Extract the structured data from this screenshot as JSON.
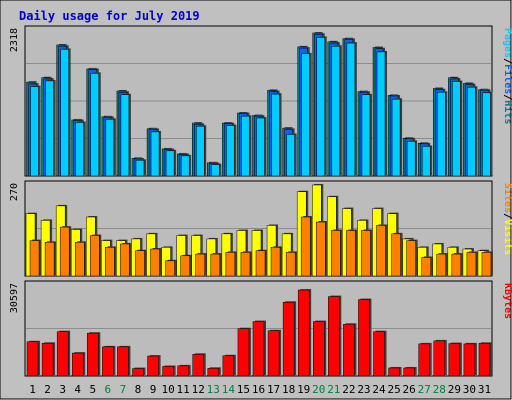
{
  "colors": {
    "background": "#c0c0c0",
    "plot_background": "#bcbcbc",
    "title": "#0000cc",
    "gridline": "#8c8c8c",
    "pages": "#00ccff",
    "files": "#0066ff",
    "hits": "#008080",
    "sites": "#ff8000",
    "visits": "#ffff00",
    "kbytes": "#ff0000",
    "weekday_label": "#000000",
    "weekend_label": "#008040"
  },
  "chart_data": {
    "type": "bar",
    "title": "Daily usage for July 2019",
    "categories": [
      "1",
      "2",
      "3",
      "4",
      "5",
      "6",
      "7",
      "8",
      "9",
      "10",
      "11",
      "12",
      "13",
      "14",
      "15",
      "16",
      "17",
      "18",
      "19",
      "20",
      "21",
      "22",
      "23",
      "24",
      "25",
      "26",
      "27",
      "28",
      "29",
      "30",
      "31"
    ],
    "weekend_days": [
      "6",
      "7",
      "13",
      "14",
      "20",
      "21",
      "27",
      "28"
    ],
    "grid": true,
    "panels": [
      {
        "id": "hits",
        "max_label": "2318",
        "ylim": [
          0,
          2318
        ],
        "legend": [
          "Pages",
          "Files",
          "Hits"
        ],
        "series": [
          {
            "name": "Hits",
            "values": [
              1490,
              1560,
              2080,
              890,
              1700,
              940,
              1350,
              280,
              750,
              430,
              350,
              840,
              210,
              840,
              1000,
              960,
              1360,
              760,
              2050,
              2270,
              2130,
              2180,
              1340,
              2040,
              1280,
              600,
              520,
              1390,
              1560,
              1470,
              1370
            ]
          },
          {
            "name": "Files",
            "values": [
              1460,
              1540,
              2060,
              880,
              1690,
              930,
              1330,
              270,
              740,
              420,
              340,
              820,
              200,
              830,
              990,
              950,
              1340,
              740,
              2030,
              2250,
              2110,
              2170,
              1330,
              2020,
              1270,
              590,
              510,
              1370,
              1540,
              1450,
              1360
            ]
          },
          {
            "name": "Pages",
            "values": [
              1420,
              1510,
              2010,
              850,
              1630,
              900,
              1290,
              250,
              700,
              400,
              320,
              790,
              180,
              800,
              950,
              920,
              1300,
              660,
              1940,
              2200,
              2060,
              2110,
              1290,
              1970,
              1220,
              550,
              470,
              1330,
              1500,
              1410,
              1320
            ]
          }
        ]
      },
      {
        "id": "visits",
        "max_label": "270",
        "ylim": [
          0,
          270
        ],
        "legend": [
          "Sites",
          "Visits"
        ],
        "series": [
          {
            "name": "Visits",
            "values": [
              185,
              165,
              208,
              138,
              175,
              105,
              105,
              110,
              125,
              85,
              120,
              120,
              110,
              125,
              135,
              135,
              150,
              125,
              250,
              270,
              235,
              200,
              165,
              200,
              185,
              110,
              85,
              95,
              85,
              80,
              75
            ]
          },
          {
            "name": "Sites",
            "values": [
              105,
              100,
              145,
              100,
              120,
              85,
              95,
              75,
              80,
              45,
              60,
              65,
              65,
              70,
              70,
              75,
              85,
              70,
              175,
              160,
              135,
              135,
              135,
              150,
              125,
              105,
              55,
              65,
              65,
              70,
              70
            ]
          }
        ]
      },
      {
        "id": "kbytes",
        "max_label": "30597",
        "ylim": [
          0,
          30597
        ],
        "legend": [
          "KBytes"
        ],
        "series": [
          {
            "name": "KBytes",
            "values": [
              11500,
              11000,
              14900,
              7700,
              14400,
              9800,
              9800,
              2500,
              6700,
              3200,
              3400,
              7300,
              2600,
              6800,
              15900,
              18300,
              15200,
              24800,
              28900,
              18300,
              26700,
              17400,
              25700,
              14900,
              2700,
              2700,
              10800,
              11800,
              10900,
              10800,
              11000
            ]
          }
        ]
      }
    ]
  }
}
